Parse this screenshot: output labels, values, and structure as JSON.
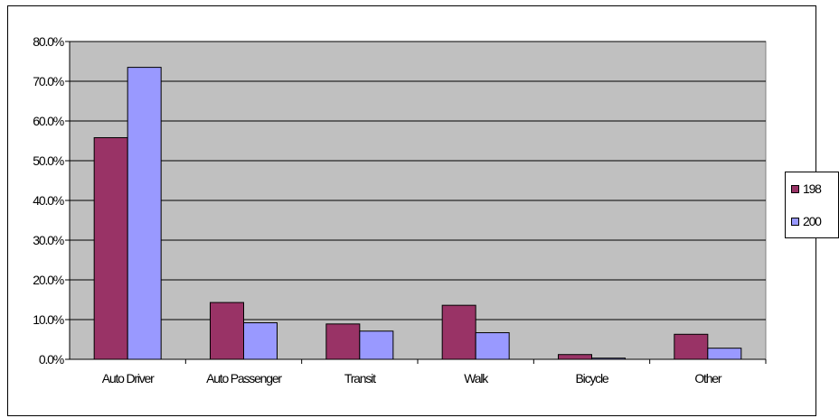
{
  "chart_data": {
    "type": "bar",
    "title": "",
    "xlabel": "",
    "ylabel": "",
    "categories": [
      "Auto Driver",
      "Auto Passenger",
      "Transit",
      "Walk",
      "Bicycle",
      "Other"
    ],
    "series": [
      {
        "name": "198",
        "color": "#993366",
        "values": [
          55.8,
          14.3,
          8.9,
          13.6,
          1.2,
          6.3
        ]
      },
      {
        "name": "200",
        "color": "#9999ff",
        "values": [
          73.5,
          9.2,
          7.1,
          6.7,
          0.3,
          2.8
        ]
      }
    ],
    "ylim": [
      0,
      80
    ],
    "yticks": [
      "0.0%",
      "10.0%",
      "20.0%",
      "30.0%",
      "40.0%",
      "50.0%",
      "60.0%",
      "70.0%",
      "80.0%"
    ],
    "grid": true,
    "legend_position": "right",
    "plot_background": "#c0c0c0"
  }
}
